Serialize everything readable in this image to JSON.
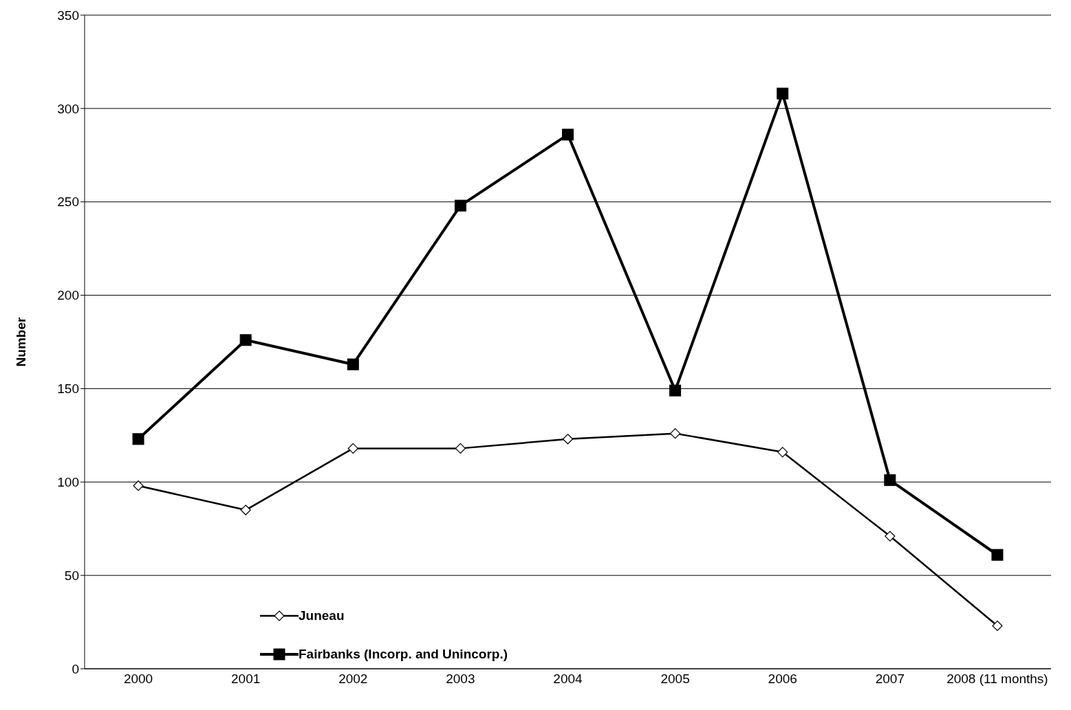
{
  "chart_data": {
    "type": "line",
    "ylabel": "Number",
    "categories": [
      "2000",
      "2001",
      "2002",
      "2003",
      "2004",
      "2005",
      "2006",
      "2007",
      "2008 (11 months)"
    ],
    "series": [
      {
        "name": "Juneau",
        "color": "#000000",
        "marker": "diamond",
        "values": [
          98,
          85,
          118,
          118,
          123,
          126,
          116,
          71,
          23
        ]
      },
      {
        "name": "Fairbanks (Incorp. and Unincorp.)",
        "color": "#000000",
        "marker": "square",
        "values": [
          123,
          176,
          163,
          248,
          286,
          149,
          308,
          101,
          61
        ]
      }
    ],
    "ylim": [
      0,
      350
    ],
    "yticks": [
      0,
      50,
      100,
      150,
      200,
      250,
      300,
      350
    ],
    "grid": "y",
    "legend": "bottom left",
    "line_style": "solid"
  }
}
